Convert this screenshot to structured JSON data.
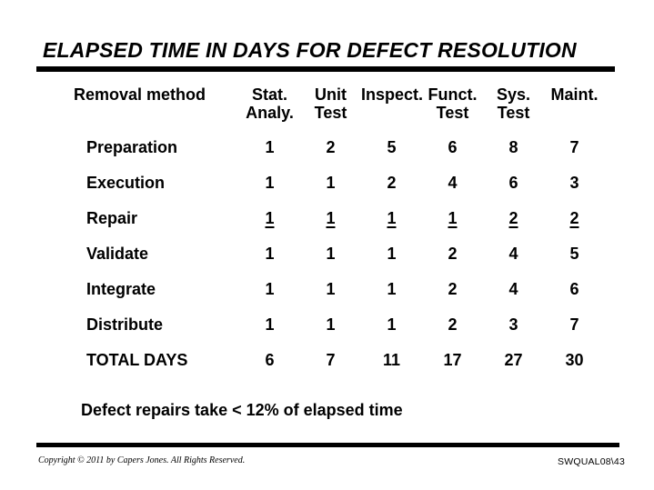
{
  "slide": {
    "title": "ELAPSED TIME IN DAYS FOR DEFECT RESOLUTION",
    "note": "Defect repairs take < 12% of elapsed time",
    "footer_left": "Copyright © 2011 by Capers Jones. All Rights Reserved.",
    "footer_right": "SWQUAL08\\43",
    "colors": {
      "background": "#ffffff",
      "text": "#000000",
      "rule": "#000000"
    },
    "table": {
      "row_header_label": "Removal method",
      "columns": [
        {
          "line1": "Stat.",
          "line2": "Analy."
        },
        {
          "line1": "Unit",
          "line2": "Test"
        },
        {
          "line1": "Inspect.",
          "line2": ""
        },
        {
          "line1": "Funct.",
          "line2": "Test"
        },
        {
          "line1": "Sys.",
          "line2": "Test"
        },
        {
          "line1": "Maint.",
          "line2": ""
        }
      ],
      "rows": [
        {
          "label": "Preparation",
          "values": [
            "1",
            "2",
            "5",
            "6",
            "8",
            "7"
          ],
          "underline": false
        },
        {
          "label": "Execution",
          "values": [
            "1",
            "1",
            "2",
            "4",
            "6",
            "3"
          ],
          "underline": false
        },
        {
          "label": "Repair",
          "values": [
            "1",
            "1",
            "1",
            "1",
            "2",
            "2"
          ],
          "underline": true
        },
        {
          "label": "Validate",
          "values": [
            "1",
            "1",
            "1",
            "2",
            "4",
            "5"
          ],
          "underline": false
        },
        {
          "label": "Integrate",
          "values": [
            "1",
            "1",
            "1",
            "2",
            "4",
            "6"
          ],
          "underline": false
        },
        {
          "label": "Distribute",
          "values": [
            "1",
            "1",
            "1",
            "2",
            "3",
            "7"
          ],
          "underline": false
        },
        {
          "label": "TOTAL DAYS",
          "values": [
            "6",
            "7",
            "11",
            "17",
            "27",
            "30"
          ],
          "underline": false
        }
      ]
    }
  },
  "chart_data": {
    "type": "table",
    "title": "ELAPSED TIME IN DAYS FOR DEFECT RESOLUTION",
    "row_header": "Removal method",
    "columns": [
      "Stat. Analy.",
      "Unit Test",
      "Inspect.",
      "Funct. Test",
      "Sys. Test",
      "Maint."
    ],
    "rows": [
      {
        "label": "Preparation",
        "values": [
          1,
          2,
          5,
          6,
          8,
          7
        ]
      },
      {
        "label": "Execution",
        "values": [
          1,
          1,
          2,
          4,
          6,
          3
        ]
      },
      {
        "label": "Repair",
        "values": [
          1,
          1,
          1,
          1,
          2,
          2
        ]
      },
      {
        "label": "Validate",
        "values": [
          1,
          1,
          1,
          2,
          4,
          5
        ]
      },
      {
        "label": "Integrate",
        "values": [
          1,
          1,
          1,
          2,
          4,
          6
        ]
      },
      {
        "label": "Distribute",
        "values": [
          1,
          1,
          1,
          2,
          3,
          7
        ]
      },
      {
        "label": "TOTAL DAYS",
        "values": [
          6,
          7,
          11,
          17,
          27,
          30
        ]
      }
    ],
    "annotation": "Defect repairs take < 12% of elapsed time"
  }
}
